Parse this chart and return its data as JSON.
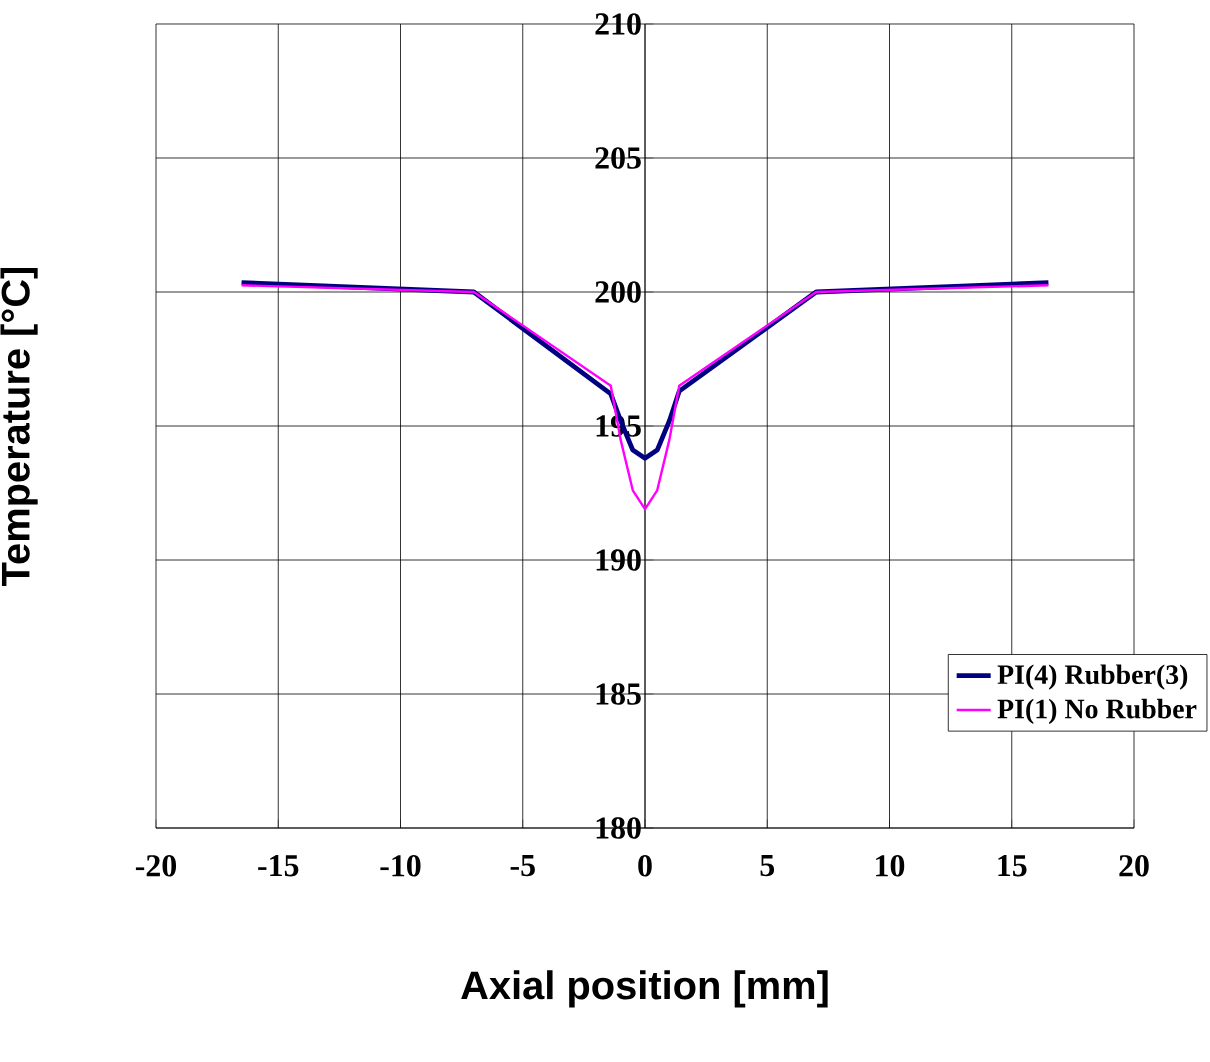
{
  "chart_data": {
    "type": "line",
    "xlabel": "Axial position  [mm]",
    "ylabel": "Temperature [°C]",
    "xlim": [
      -20,
      20
    ],
    "xticks": [
      -20,
      -15,
      -10,
      -5,
      0,
      5,
      10,
      15,
      20
    ],
    "ylim": [
      180,
      210
    ],
    "yticks": [
      180,
      185,
      190,
      195,
      200,
      205,
      210
    ],
    "grid": true,
    "legend": "bottom right",
    "marker": "none",
    "line_style": "solid",
    "series": [
      {
        "name": "PI(4) Rubber(3)",
        "color": "#000080",
        "x": [
          -16.5,
          -7,
          -1.4,
          -1,
          -0.5,
          0,
          0.5,
          1,
          1.4,
          7,
          16.5
        ],
        "values": [
          200.35,
          200.0,
          196.2,
          195.2,
          194.1,
          193.8,
          194.1,
          195.2,
          196.3,
          200.0,
          200.35
        ]
      },
      {
        "name": "PI(1) No Rubber",
        "color": "#ff00ff",
        "x": [
          -16.5,
          -7,
          -1.4,
          -1,
          -0.5,
          0,
          0.5,
          1,
          1.4,
          7,
          16.5
        ],
        "values": [
          200.25,
          200.0,
          196.5,
          194.5,
          192.6,
          191.9,
          192.6,
          194.5,
          196.5,
          200.0,
          200.25
        ]
      }
    ]
  }
}
